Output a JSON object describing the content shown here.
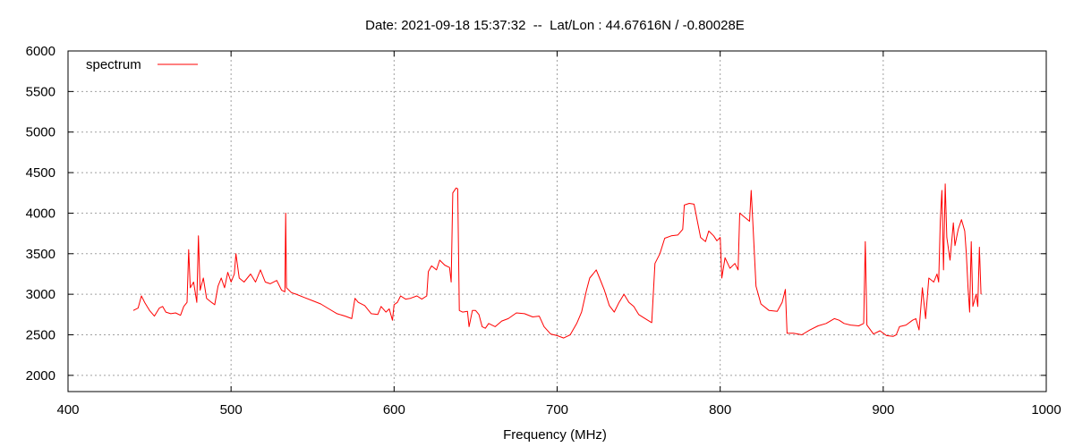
{
  "chart_data": {
    "type": "line",
    "title": "Date: 2021-09-18 15:37:32  --  Lat/Lon : 44.67616N / -0.80028E",
    "xlabel": "Frequency (MHz)",
    "ylabel": "",
    "xlim": [
      400,
      1000
    ],
    "ylim": [
      1800,
      6000
    ],
    "x_ticks": [
      400,
      500,
      600,
      700,
      800,
      900,
      1000
    ],
    "y_ticks": [
      2000,
      2500,
      3000,
      3500,
      4000,
      4500,
      5000,
      5500,
      6000
    ],
    "grid": true,
    "legend_position": "top-left",
    "series": [
      {
        "name": "spectrum",
        "color": "#ff0000",
        "points": [
          [
            440,
            2800
          ],
          [
            443,
            2830
          ],
          [
            445,
            2980
          ],
          [
            447,
            2900
          ],
          [
            450,
            2800
          ],
          [
            453,
            2730
          ],
          [
            456,
            2830
          ],
          [
            458,
            2850
          ],
          [
            460,
            2780
          ],
          [
            463,
            2760
          ],
          [
            466,
            2770
          ],
          [
            469,
            2740
          ],
          [
            471,
            2850
          ],
          [
            473,
            2900
          ],
          [
            474,
            3550
          ],
          [
            475,
            3080
          ],
          [
            477,
            3150
          ],
          [
            479,
            2900
          ],
          [
            480,
            3720
          ],
          [
            481,
            3050
          ],
          [
            483,
            3200
          ],
          [
            485,
            2950
          ],
          [
            488,
            2900
          ],
          [
            490,
            2870
          ],
          [
            492,
            3100
          ],
          [
            494,
            3200
          ],
          [
            496,
            3080
          ],
          [
            498,
            3270
          ],
          [
            500,
            3150
          ],
          [
            502,
            3250
          ],
          [
            503,
            3500
          ],
          [
            505,
            3200
          ],
          [
            508,
            3150
          ],
          [
            512,
            3250
          ],
          [
            515,
            3150
          ],
          [
            518,
            3300
          ],
          [
            521,
            3150
          ],
          [
            524,
            3130
          ],
          [
            528,
            3170
          ],
          [
            531,
            3050
          ],
          [
            533,
            3030
          ],
          [
            533.5,
            4000
          ],
          [
            534,
            3080
          ],
          [
            537,
            3020
          ],
          [
            540,
            3000
          ],
          [
            545,
            2960
          ],
          [
            550,
            2920
          ],
          [
            555,
            2880
          ],
          [
            560,
            2820
          ],
          [
            565,
            2760
          ],
          [
            570,
            2730
          ],
          [
            574,
            2700
          ],
          [
            576,
            2950
          ],
          [
            578,
            2900
          ],
          [
            582,
            2860
          ],
          [
            586,
            2760
          ],
          [
            590,
            2750
          ],
          [
            592,
            2850
          ],
          [
            595,
            2780
          ],
          [
            597,
            2820
          ],
          [
            599,
            2680
          ],
          [
            600,
            2870
          ],
          [
            602,
            2900
          ],
          [
            604,
            2980
          ],
          [
            607,
            2940
          ],
          [
            610,
            2950
          ],
          [
            614,
            2980
          ],
          [
            617,
            2940
          ],
          [
            620,
            2980
          ],
          [
            621,
            3280
          ],
          [
            623,
            3350
          ],
          [
            626,
            3300
          ],
          [
            628,
            3420
          ],
          [
            631,
            3360
          ],
          [
            633,
            3340
          ],
          [
            634,
            3330
          ],
          [
            635,
            3150
          ],
          [
            636,
            4250
          ],
          [
            638,
            4310
          ],
          [
            639,
            4300
          ],
          [
            640,
            2800
          ],
          [
            642,
            2780
          ],
          [
            645,
            2790
          ],
          [
            646,
            2600
          ],
          [
            648,
            2800
          ],
          [
            650,
            2800
          ],
          [
            652,
            2750
          ],
          [
            654,
            2600
          ],
          [
            656,
            2580
          ],
          [
            658,
            2640
          ],
          [
            662,
            2600
          ],
          [
            666,
            2670
          ],
          [
            670,
            2700
          ],
          [
            675,
            2770
          ],
          [
            680,
            2760
          ],
          [
            685,
            2720
          ],
          [
            689,
            2730
          ],
          [
            692,
            2600
          ],
          [
            696,
            2510
          ],
          [
            700,
            2490
          ],
          [
            704,
            2460
          ],
          [
            708,
            2500
          ],
          [
            712,
            2640
          ],
          [
            715,
            2780
          ],
          [
            718,
            3050
          ],
          [
            720,
            3200
          ],
          [
            722,
            3250
          ],
          [
            724,
            3300
          ],
          [
            726,
            3200
          ],
          [
            729,
            3050
          ],
          [
            732,
            2860
          ],
          [
            735,
            2780
          ],
          [
            738,
            2900
          ],
          [
            741,
            3000
          ],
          [
            744,
            2900
          ],
          [
            747,
            2850
          ],
          [
            750,
            2750
          ],
          [
            754,
            2700
          ],
          [
            758,
            2650
          ],
          [
            760,
            3380
          ],
          [
            763,
            3500
          ],
          [
            766,
            3690
          ],
          [
            770,
            3720
          ],
          [
            774,
            3730
          ],
          [
            777,
            3800
          ],
          [
            778,
            4100
          ],
          [
            781,
            4120
          ],
          [
            784,
            4110
          ],
          [
            786,
            3900
          ],
          [
            788,
            3700
          ],
          [
            791,
            3650
          ],
          [
            793,
            3780
          ],
          [
            796,
            3720
          ],
          [
            798,
            3660
          ],
          [
            800,
            3700
          ],
          [
            801,
            3200
          ],
          [
            803,
            3450
          ],
          [
            806,
            3320
          ],
          [
            809,
            3380
          ],
          [
            811,
            3300
          ],
          [
            812,
            4000
          ],
          [
            815,
            3950
          ],
          [
            818,
            3900
          ],
          [
            819,
            4280
          ],
          [
            820,
            3900
          ],
          [
            822,
            3100
          ],
          [
            825,
            2880
          ],
          [
            830,
            2800
          ],
          [
            835,
            2790
          ],
          [
            838,
            2900
          ],
          [
            840,
            3060
          ],
          [
            841,
            2520
          ],
          [
            845,
            2520
          ],
          [
            850,
            2500
          ],
          [
            855,
            2560
          ],
          [
            860,
            2610
          ],
          [
            865,
            2640
          ],
          [
            870,
            2700
          ],
          [
            873,
            2680
          ],
          [
            876,
            2640
          ],
          [
            880,
            2620
          ],
          [
            885,
            2610
          ],
          [
            888,
            2640
          ],
          [
            889,
            3650
          ],
          [
            890,
            2620
          ],
          [
            894,
            2510
          ],
          [
            898,
            2550
          ],
          [
            902,
            2490
          ],
          [
            906,
            2480
          ],
          [
            908,
            2500
          ],
          [
            910,
            2600
          ],
          [
            914,
            2620
          ],
          [
            918,
            2680
          ],
          [
            920,
            2700
          ],
          [
            922,
            2560
          ],
          [
            924,
            3080
          ],
          [
            926,
            2700
          ],
          [
            928,
            3200
          ],
          [
            931,
            3150
          ],
          [
            933,
            3250
          ],
          [
            934,
            3150
          ],
          [
            935,
            3900
          ],
          [
            936,
            4280
          ],
          [
            937,
            3300
          ],
          [
            938,
            4360
          ],
          [
            939,
            3700
          ],
          [
            941,
            3420
          ],
          [
            943,
            3880
          ],
          [
            944,
            3600
          ],
          [
            946,
            3800
          ],
          [
            948,
            3920
          ],
          [
            950,
            3780
          ],
          [
            951,
            3500
          ],
          [
            952,
            3080
          ],
          [
            953,
            2780
          ],
          [
            954,
            3650
          ],
          [
            955,
            2850
          ],
          [
            957,
            3000
          ],
          [
            958,
            2850
          ],
          [
            959,
            3580
          ],
          [
            960,
            3000
          ]
        ]
      }
    ]
  }
}
